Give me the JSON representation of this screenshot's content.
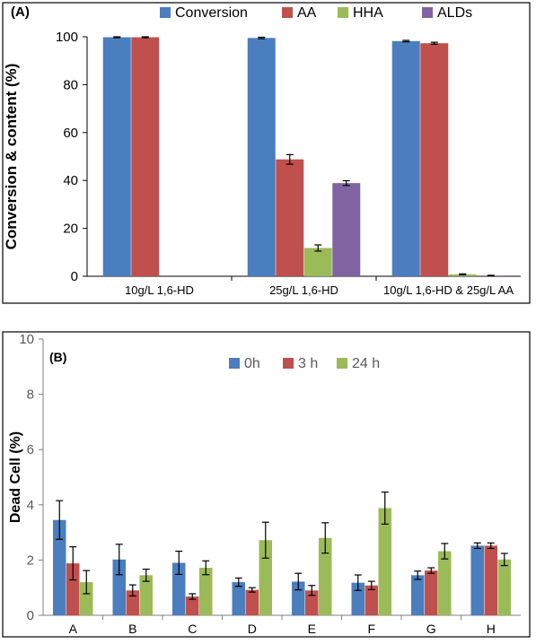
{
  "chart_data": [
    {
      "panel_label": "(A)",
      "type": "bar",
      "ylabel": "Conversion & content (%)",
      "xlabel": "",
      "ylim": [
        0,
        100
      ],
      "yticks": [
        0,
        20,
        40,
        60,
        80,
        100
      ],
      "grid": false,
      "legend_position": "top",
      "categories": [
        "10g/L 1,6-HD",
        "25g/L 1,6-HD",
        "10g/L 1,6-HD & 25g/L AA"
      ],
      "series": [
        {
          "name": "Conversion",
          "color": "#4a7ebf",
          "values": [
            99.8,
            99.5,
            98.2
          ],
          "errors": [
            0.2,
            0.3,
            0.3
          ]
        },
        {
          "name": "AA",
          "color": "#c0504d",
          "values": [
            99.8,
            48.8,
            97.3
          ],
          "errors": [
            0.2,
            2.0,
            0.4
          ]
        },
        {
          "name": "HHA",
          "color": "#9bbb59",
          "values": [
            null,
            11.8,
            0.8
          ],
          "errors": [
            null,
            1.3,
            0.2
          ]
        },
        {
          "name": "ALDs",
          "color": "#8064a2",
          "values": [
            null,
            38.9,
            0.3
          ],
          "errors": [
            null,
            1.0,
            0.1
          ]
        }
      ]
    },
    {
      "panel_label": "(B)",
      "type": "bar",
      "ylabel": "Dead Cell (%)",
      "xlabel": "",
      "ylim": [
        0,
        10
      ],
      "yticks": [
        0,
        2,
        4,
        6,
        8,
        10
      ],
      "grid": false,
      "legend_position": "top",
      "categories": [
        "A",
        "B",
        "C",
        "D",
        "E",
        "F",
        "G",
        "H"
      ],
      "series": [
        {
          "name": "0h",
          "color": "#4a7ebf",
          "values": [
            3.45,
            2.02,
            1.9,
            1.2,
            1.22,
            1.18,
            1.45,
            2.52
          ],
          "errors": [
            0.7,
            0.55,
            0.42,
            0.15,
            0.3,
            0.28,
            0.15,
            0.1
          ]
        },
        {
          "name": "3 h",
          "color": "#c0504d",
          "values": [
            1.88,
            0.9,
            0.68,
            0.92,
            0.9,
            1.08,
            1.62,
            2.52
          ],
          "errors": [
            0.6,
            0.2,
            0.1,
            0.08,
            0.18,
            0.15,
            0.1,
            0.1
          ]
        },
        {
          "name": "24 h",
          "color": "#9bbb59",
          "values": [
            1.2,
            1.45,
            1.72,
            2.72,
            2.8,
            3.88,
            2.32,
            2.02
          ],
          "errors": [
            0.42,
            0.22,
            0.25,
            0.65,
            0.55,
            0.58,
            0.28,
            0.22
          ]
        }
      ]
    }
  ]
}
